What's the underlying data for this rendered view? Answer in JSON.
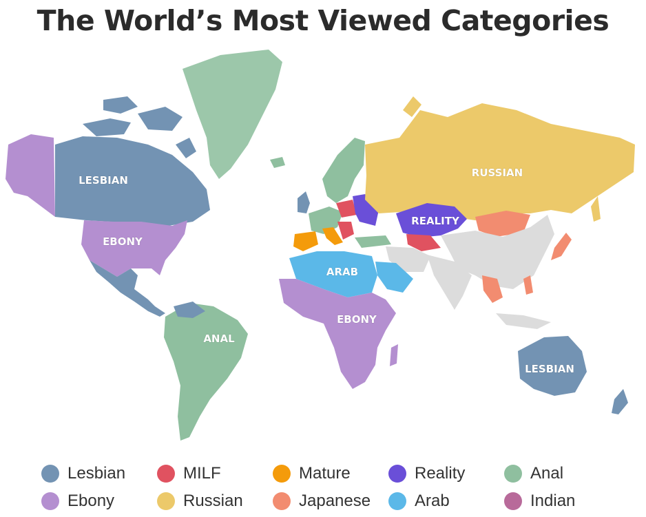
{
  "title": "The World’s Most Viewed Categories",
  "colors": {
    "lesbian": "#7393b3",
    "milf": "#e05260",
    "mature": "#f49b0b",
    "reality": "#6a4fd8",
    "anal": "#8fbf9f",
    "ebony": "#b48fd0",
    "russian": "#ecc96a",
    "japanese": "#f28c70",
    "arab": "#5bb8e8",
    "indian": "#b86a9a",
    "nodata": "#dcdcdc",
    "greenland": "#9cc7aa"
  },
  "map_labels": {
    "north_america": "LESBIAN",
    "usa": "EBONY",
    "south_america": "ANAL",
    "russia": "RUSSIAN",
    "central_asia": "REALITY",
    "north_africa": "ARAB",
    "africa": "EBONY",
    "australia": "LESBIAN"
  },
  "legend": [
    {
      "label": "Lesbian",
      "color": "#7393b3"
    },
    {
      "label": "MILF",
      "color": "#e05260"
    },
    {
      "label": "Mature",
      "color": "#f49b0b"
    },
    {
      "label": "Reality",
      "color": "#6a4fd8"
    },
    {
      "label": "Anal",
      "color": "#8fbf9f"
    },
    {
      "label": "Ebony",
      "color": "#b48fd0"
    },
    {
      "label": "Russian",
      "color": "#ecc96a"
    },
    {
      "label": "Japanese",
      "color": "#f28c70"
    },
    {
      "label": "Arab",
      "color": "#5bb8e8"
    },
    {
      "label": "Indian",
      "color": "#b86a9a"
    }
  ]
}
